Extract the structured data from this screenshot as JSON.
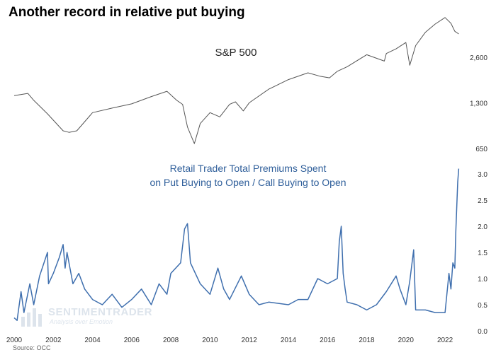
{
  "title": "Another record in relative put buying",
  "source": "Source: OCC",
  "watermark": {
    "name": "SENTIMENTRADER",
    "tagline": "Analysis over Emotion"
  },
  "colors": {
    "spx_line": "#555555",
    "ratio_line": "#3f6fae",
    "ratio_label": "#2e5e9a",
    "tick_text": "#333333"
  },
  "chart_data": [
    {
      "type": "line",
      "title": "S&P 500",
      "yscale": "log",
      "y_ticks": [
        {
          "value": 650,
          "label": "650"
        },
        {
          "value": 1300,
          "label": "1,300"
        },
        {
          "value": 2600,
          "label": "2,600"
        }
      ],
      "ylim": [
        650,
        5000
      ],
      "grid": false,
      "series": [
        {
          "x": [
            2000.0,
            2000.7,
            2001.0,
            2001.7,
            2002.5,
            2002.8,
            2003.2,
            2004.0,
            2005.0,
            2006.0,
            2007.0,
            2007.8,
            2008.3,
            2008.6,
            2008.85,
            2009.2,
            2009.5,
            2010.0,
            2010.5,
            2011.0,
            2011.3,
            2011.7,
            2012.0,
            2013.0,
            2014.0,
            2015.0,
            2015.6,
            2016.1,
            2016.5,
            2017.0,
            2018.0,
            2018.9,
            2019.0,
            2019.5,
            2020.0,
            2020.2,
            2020.5,
            2021.0,
            2021.5,
            2022.0,
            2022.3,
            2022.5,
            2022.7
          ],
          "values": [
            1450,
            1500,
            1350,
            1100,
            850,
            830,
            850,
            1120,
            1200,
            1280,
            1430,
            1550,
            1350,
            1270,
            900,
            700,
            950,
            1120,
            1050,
            1270,
            1320,
            1150,
            1300,
            1600,
            1850,
            2050,
            1950,
            1900,
            2100,
            2250,
            2700,
            2450,
            2750,
            2950,
            3250,
            2300,
            3100,
            3800,
            4300,
            4750,
            4350,
            3850,
            3700
          ]
        }
      ]
    },
    {
      "type": "line",
      "title": "Retail Trader Total Premiums Spent on Put Buying to Open / Call Buying to Open",
      "ylim": [
        0.0,
        3.2
      ],
      "y_ticks": [
        0.0,
        0.5,
        1.0,
        1.5,
        2.0,
        2.5,
        3.0
      ],
      "y_tick_labels": [
        "0.0",
        "0.5",
        "1.0",
        "1.5",
        "2.0",
        "2.5",
        "3.0"
      ],
      "x_ticks": [
        2000,
        2002,
        2004,
        2006,
        2008,
        2010,
        2012,
        2014,
        2016,
        2018,
        2020,
        2022
      ],
      "grid": false,
      "series": [
        {
          "x": [
            2000.0,
            2000.15,
            2000.35,
            2000.5,
            2000.8,
            2001.0,
            2001.3,
            2001.7,
            2001.75,
            2002.0,
            2002.3,
            2002.5,
            2002.6,
            2002.7,
            2003.0,
            2003.3,
            2003.6,
            2004.0,
            2004.5,
            2005.0,
            2005.5,
            2006.0,
            2006.5,
            2007.0,
            2007.4,
            2007.8,
            2008.0,
            2008.5,
            2008.7,
            2008.85,
            2009.0,
            2009.5,
            2010.0,
            2010.4,
            2010.7,
            2011.0,
            2011.6,
            2012.0,
            2012.5,
            2013.0,
            2014.0,
            2014.5,
            2015.0,
            2015.5,
            2016.0,
            2016.5,
            2016.6,
            2016.7,
            2016.8,
            2016.9,
            2017.0,
            2017.5,
            2018.0,
            2018.5,
            2019.0,
            2019.5,
            2019.7,
            2020.0,
            2020.2,
            2020.4,
            2020.5,
            2021.0,
            2021.5,
            2022.0,
            2022.2,
            2022.3,
            2022.4,
            2022.5,
            2022.55,
            2022.6,
            2022.65,
            2022.7
          ],
          "values": [
            0.25,
            0.2,
            0.75,
            0.35,
            0.9,
            0.5,
            1.05,
            1.5,
            0.9,
            1.1,
            1.4,
            1.65,
            1.2,
            1.5,
            0.9,
            1.1,
            0.8,
            0.6,
            0.5,
            0.7,
            0.45,
            0.6,
            0.8,
            0.5,
            0.9,
            0.7,
            1.1,
            1.3,
            1.95,
            2.05,
            1.3,
            0.9,
            0.7,
            1.2,
            0.8,
            0.6,
            1.05,
            0.7,
            0.5,
            0.55,
            0.5,
            0.6,
            0.6,
            1.0,
            0.9,
            1.0,
            1.7,
            2.0,
            1.1,
            0.8,
            0.55,
            0.5,
            0.4,
            0.5,
            0.75,
            1.05,
            0.8,
            0.5,
            0.95,
            1.55,
            0.4,
            0.4,
            0.35,
            0.35,
            1.1,
            0.8,
            1.3,
            1.2,
            1.9,
            2.4,
            2.85,
            3.1
          ]
        }
      ]
    }
  ]
}
